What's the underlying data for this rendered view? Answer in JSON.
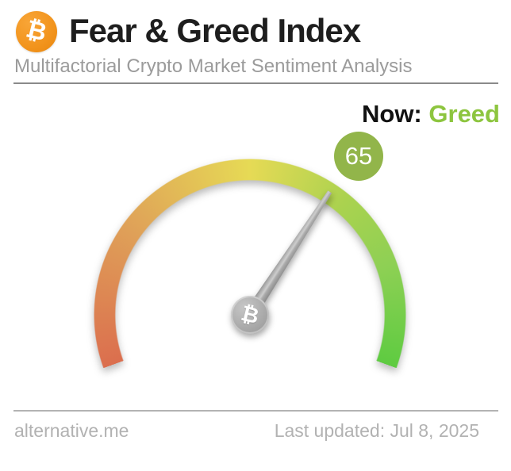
{
  "header": {
    "title": "Fear & Greed Index",
    "subtitle": "Multifactorial Crypto Market Sentiment Analysis",
    "logo_symbol": "₿",
    "logo_color": "#f2941d"
  },
  "status": {
    "now_label": "Now:",
    "now_value": "Greed",
    "value_color": "#8dc53f"
  },
  "gauge": {
    "value": 65,
    "min": 0,
    "max": 100,
    "start_angle_deg": -110,
    "sweep_deg": 220,
    "badge_color": "#92b54a",
    "center_symbol": "₿",
    "needle_color": "#a8a8a8",
    "hub_color": "#a8a8a8",
    "arc_stops": [
      {
        "deg": 0,
        "color": "#db6e4e"
      },
      {
        "deg": 55,
        "color": "#dfa058"
      },
      {
        "deg": 110,
        "color": "#e6da55"
      },
      {
        "deg": 150,
        "color": "#aad24f"
      },
      {
        "deg": 180,
        "color": "#8ed054"
      },
      {
        "deg": 220,
        "color": "#5ecb41"
      }
    ]
  },
  "footer": {
    "site": "alternative.me",
    "last_updated": "Last updated: Jul 8, 2025"
  }
}
